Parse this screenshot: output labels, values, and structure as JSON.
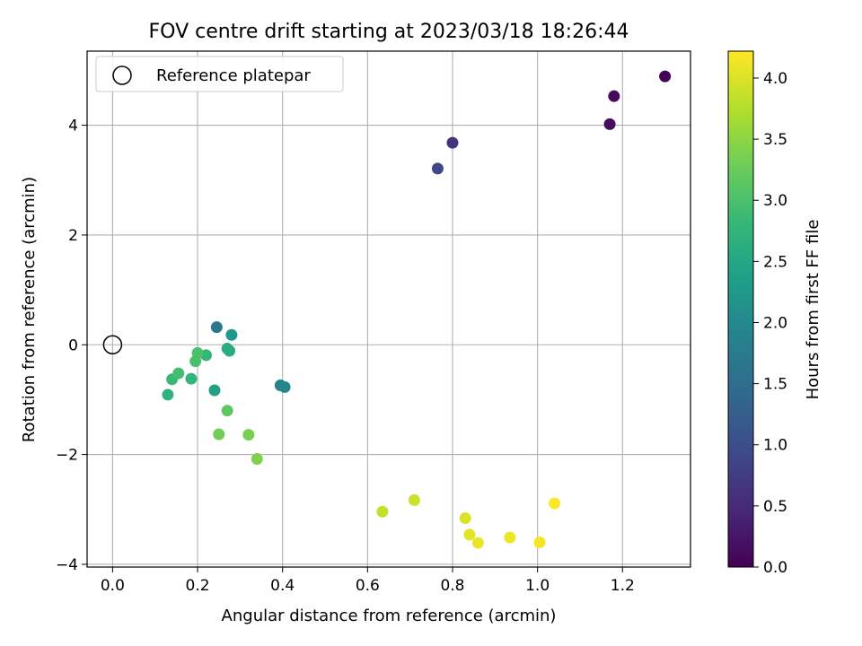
{
  "chart_data": {
    "type": "scatter",
    "title": "FOV centre drift starting at 2023/03/18 18:26:44",
    "xlabel": "Angular distance from reference (arcmin)",
    "ylabel": "Rotation from reference (arcmin)",
    "xlim": [
      -0.06,
      1.36
    ],
    "ylim": [
      -4.05,
      5.35
    ],
    "xticks": [
      0.0,
      0.2,
      0.4,
      0.6,
      0.8,
      1.0,
      1.2
    ],
    "xtick_labels": [
      "0.0",
      "0.2",
      "0.4",
      "0.6",
      "0.8",
      "1.0",
      "1.2"
    ],
    "yticks": [
      -4,
      -2,
      0,
      2,
      4
    ],
    "ytick_labels": [
      "−4",
      "−2",
      "0",
      "2",
      "4"
    ],
    "grid": true,
    "legend": {
      "position": "upper-left",
      "entries": [
        {
          "label": "Reference platepar",
          "marker": "open-circle",
          "color": "#000000"
        }
      ]
    },
    "reference": {
      "x": 0.0,
      "y": 0.0
    },
    "colorbar": {
      "label": "Hours from first FF file",
      "min": 0.0,
      "max": 4.22,
      "colormap": "viridis",
      "ticks": [
        0.0,
        0.5,
        1.0,
        1.5,
        2.0,
        2.5,
        3.0,
        3.5,
        4.0
      ],
      "tick_labels": [
        "0.0",
        "0.5",
        "1.0",
        "1.5",
        "2.0",
        "2.5",
        "3.0",
        "3.5",
        "4.0"
      ]
    },
    "points": [
      {
        "x": 1.3,
        "y": 4.89,
        "hours": 0.02
      },
      {
        "x": 1.18,
        "y": 4.53,
        "hours": 0.1
      },
      {
        "x": 1.17,
        "y": 4.02,
        "hours": 0.15
      },
      {
        "x": 0.8,
        "y": 3.68,
        "hours": 0.6
      },
      {
        "x": 0.765,
        "y": 3.21,
        "hours": 0.9
      },
      {
        "x": 0.245,
        "y": 0.32,
        "hours": 1.7
      },
      {
        "x": 0.395,
        "y": -0.74,
        "hours": 1.9
      },
      {
        "x": 0.405,
        "y": -0.77,
        "hours": 1.95
      },
      {
        "x": 0.28,
        "y": 0.18,
        "hours": 2.25
      },
      {
        "x": 0.24,
        "y": -0.83,
        "hours": 2.4
      },
      {
        "x": 0.27,
        "y": -0.07,
        "hours": 2.55
      },
      {
        "x": 0.275,
        "y": -0.11,
        "hours": 2.6
      },
      {
        "x": 0.13,
        "y": -0.91,
        "hours": 2.7
      },
      {
        "x": 0.185,
        "y": -0.62,
        "hours": 2.75
      },
      {
        "x": 0.22,
        "y": -0.19,
        "hours": 2.8
      },
      {
        "x": 0.14,
        "y": -0.63,
        "hours": 2.85
      },
      {
        "x": 0.155,
        "y": -0.52,
        "hours": 2.95
      },
      {
        "x": 0.2,
        "y": -0.15,
        "hours": 3.0
      },
      {
        "x": 0.195,
        "y": -0.3,
        "hours": 3.0
      },
      {
        "x": 0.27,
        "y": -1.2,
        "hours": 3.15
      },
      {
        "x": 0.25,
        "y": -1.63,
        "hours": 3.3
      },
      {
        "x": 0.32,
        "y": -1.64,
        "hours": 3.35
      },
      {
        "x": 0.34,
        "y": -2.08,
        "hours": 3.4
      },
      {
        "x": 0.635,
        "y": -3.04,
        "hours": 3.85
      },
      {
        "x": 0.71,
        "y": -2.83,
        "hours": 3.9
      },
      {
        "x": 0.83,
        "y": -3.16,
        "hours": 4.0
      },
      {
        "x": 0.84,
        "y": -3.46,
        "hours": 4.05
      },
      {
        "x": 0.86,
        "y": -3.61,
        "hours": 4.1
      },
      {
        "x": 0.935,
        "y": -3.51,
        "hours": 4.12
      },
      {
        "x": 1.005,
        "y": -3.6,
        "hours": 4.15
      },
      {
        "x": 1.04,
        "y": -2.89,
        "hours": 4.2
      }
    ]
  }
}
